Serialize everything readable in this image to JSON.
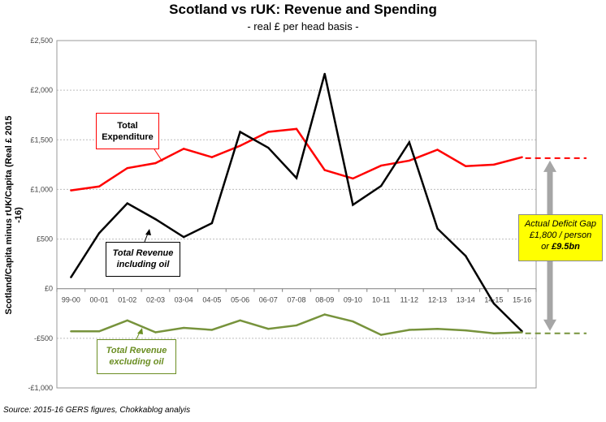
{
  "chart_data": {
    "type": "line",
    "title": "Scotland vs rUK: Revenue and Spending",
    "subtitle": "- real £ per head basis -",
    "ylabel": "Scotland/Capita minus rUK/Capita (Real £ 2015 -16)",
    "xlabel": "",
    "ylim": [
      -1000,
      2500
    ],
    "yticks": [
      2500,
      2000,
      1500,
      1000,
      500,
      0,
      -500,
      -1000
    ],
    "ytick_labels": [
      "£2,500",
      "£2,000",
      "£1,500",
      "£1,000",
      "£500",
      "£0",
      "-£500",
      "-£1,000"
    ],
    "categories": [
      "99-00",
      "00-01",
      "01-02",
      "02-03",
      "03-04",
      "04-05",
      "05-06",
      "06-07",
      "07-08",
      "08-09",
      "09-10",
      "10-11",
      "11-12",
      "12-13",
      "13-14",
      "14-15",
      "15-16"
    ],
    "series": [
      {
        "name": "Total Expenditure",
        "color": "#ff0000",
        "values": [
          990,
          1030,
          1215,
          1265,
          1410,
          1325,
          1440,
          1580,
          1610,
          1195,
          1110,
          1240,
          1290,
          1400,
          1235,
          1250,
          1325
        ]
      },
      {
        "name": "Total Revenue including oil",
        "color": "#000000",
        "values": [
          115,
          560,
          860,
          700,
          520,
          660,
          1580,
          1420,
          1115,
          2165,
          845,
          1035,
          1475,
          605,
          330,
          -150,
          -430
        ]
      },
      {
        "name": "Total Revenue excluding oil",
        "color": "#77933c",
        "values": [
          -430,
          -430,
          -320,
          -440,
          -395,
          -415,
          -320,
          -405,
          -370,
          -260,
          -330,
          -465,
          -415,
          -405,
          -420,
          -450,
          -440
        ]
      }
    ],
    "reference_lines": [
      {
        "name": "expenditure-level",
        "value": 1315,
        "color": "#ff0000"
      },
      {
        "name": "revenue-excl-oil-level",
        "value": -450,
        "color": "#77933c"
      }
    ]
  },
  "labels": {
    "expenditure_line1": "Total",
    "expenditure_line2": "Expenditure",
    "revenue_line1": "Total Revenue",
    "revenue_line2": "including oil",
    "revenue_ex_line1": "Total Revenue",
    "revenue_ex_line2": "excluding oil",
    "gap_line1": "Actual Deficit Gap",
    "gap_line2": "£1,800 / person",
    "gap_line3_prefix": "or ",
    "gap_line3_value": "£9.5bn"
  },
  "source": "Source: 2015-16 GERS figures, Chokkablog analyis"
}
